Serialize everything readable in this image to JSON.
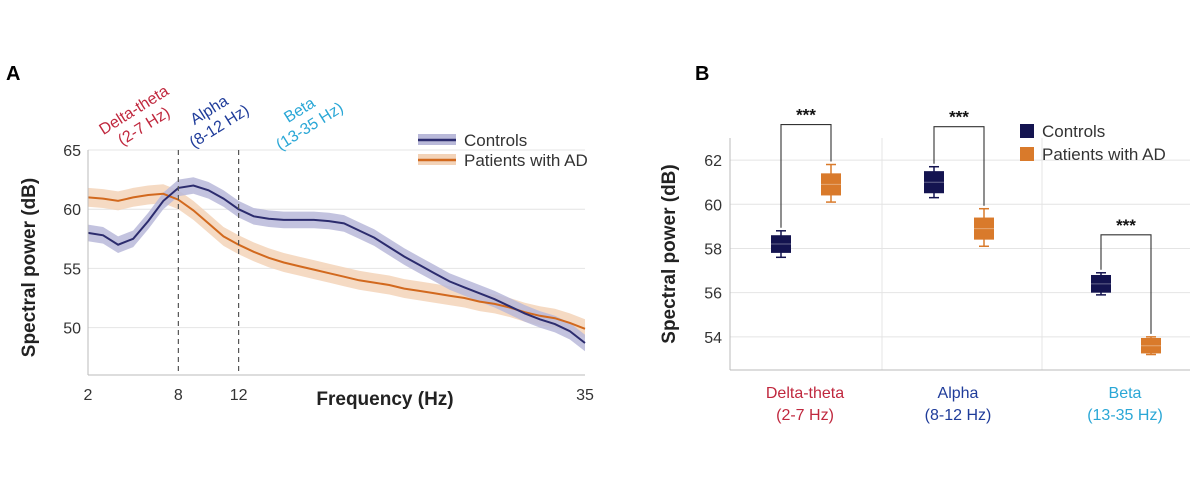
{
  "figure": {
    "panel_a_letter": "A",
    "panel_b_letter": "B"
  },
  "colors": {
    "controls": "#2c2c6e",
    "controls_band": "#b9b9d9",
    "ad": "#d2691e",
    "ad_band": "#f3d3b8",
    "delta_theta": "#c0283e",
    "alpha": "#1f3c9a",
    "beta": "#2aa7d6",
    "controls_square": "#141450",
    "ad_square": "#d97a2b"
  },
  "chart_data": [
    {
      "type": "line",
      "title": "",
      "xlabel": "Frequency (Hz)",
      "ylabel": "Spectral power (dB)",
      "xlim": [
        2,
        35
      ],
      "ylim": [
        46,
        65
      ],
      "xticks": [
        2,
        8,
        12,
        35
      ],
      "yticks": [
        50,
        55,
        60,
        65
      ],
      "xtick_labels": [
        "2",
        "8",
        "12",
        "35"
      ],
      "ytick_labels": [
        "50",
        "55",
        "60",
        "65"
      ],
      "vlines": [
        8,
        12
      ],
      "bands": [
        {
          "line1": "Delta-theta",
          "line2": "(2-7 Hz)",
          "color_key": "delta_theta",
          "center": 5
        },
        {
          "line1": "Alpha",
          "line2": "(8-12 Hz)",
          "color_key": "alpha",
          "center": 10
        },
        {
          "line1": "Beta",
          "line2": "(13-35 Hz)",
          "color_key": "beta",
          "center": 16
        }
      ],
      "legend": [
        "Controls",
        "Patients with AD"
      ],
      "series": [
        {
          "name": "Controls",
          "ci": 0.7,
          "x": [
            2,
            3,
            4,
            5,
            6,
            7,
            8,
            9,
            10,
            11,
            12,
            13,
            14,
            15,
            16,
            17,
            18,
            19,
            20,
            21,
            22,
            23,
            24,
            25,
            26,
            27,
            28,
            29,
            30,
            31,
            32,
            33,
            34,
            35
          ],
          "y": [
            58.0,
            57.8,
            57.0,
            57.5,
            59.0,
            60.7,
            61.8,
            62.0,
            61.6,
            60.9,
            60.0,
            59.4,
            59.2,
            59.1,
            59.1,
            59.1,
            59.0,
            58.8,
            58.2,
            57.6,
            56.8,
            56.0,
            55.3,
            54.6,
            53.9,
            53.4,
            52.9,
            52.4,
            51.8,
            51.2,
            50.7,
            50.3,
            49.7,
            48.7
          ]
        },
        {
          "name": "Patients with AD",
          "ci": 0.8,
          "x": [
            2,
            3,
            4,
            5,
            6,
            7,
            8,
            9,
            10,
            11,
            12,
            13,
            14,
            15,
            16,
            17,
            18,
            19,
            20,
            21,
            22,
            23,
            24,
            25,
            26,
            27,
            28,
            29,
            30,
            31,
            32,
            33,
            34,
            35
          ],
          "y": [
            61.0,
            60.9,
            60.7,
            61.0,
            61.2,
            61.3,
            60.8,
            59.9,
            58.8,
            57.7,
            57.0,
            56.4,
            55.9,
            55.5,
            55.2,
            54.9,
            54.6,
            54.3,
            54.0,
            53.8,
            53.6,
            53.3,
            53.1,
            52.9,
            52.7,
            52.5,
            52.2,
            52.0,
            51.7,
            51.3,
            51.0,
            50.8,
            50.4,
            49.9
          ]
        }
      ]
    },
    {
      "type": "box",
      "title": "",
      "xlabel": "",
      "ylabel": "Spectral power (dB)",
      "ylim": [
        52.5,
        63
      ],
      "yticks": [
        54,
        56,
        58,
        60,
        62
      ],
      "ytick_labels": [
        "54",
        "56",
        "58",
        "60",
        "62"
      ],
      "categories": [
        {
          "line1": "Delta-theta",
          "line2": "(2-7 Hz)",
          "color_key": "delta_theta"
        },
        {
          "line1": "Alpha",
          "line2": "(8-12 Hz)",
          "color_key": "alpha"
        },
        {
          "line1": "Beta",
          "line2": "(13-35 Hz)",
          "color_key": "beta"
        }
      ],
      "legend": [
        "Controls",
        "Patients with AD"
      ],
      "series": [
        {
          "name": "Controls",
          "median": [
            58.2,
            61.0,
            56.4
          ],
          "q1": [
            57.8,
            60.5,
            56.0
          ],
          "q3": [
            58.6,
            61.5,
            56.8
          ],
          "min": [
            57.6,
            60.3,
            55.9
          ],
          "max": [
            58.8,
            61.7,
            56.9
          ]
        },
        {
          "name": "Patients with AD",
          "median": [
            60.9,
            58.9,
            53.6
          ],
          "q1": [
            60.4,
            58.4,
            53.25
          ],
          "q3": [
            61.4,
            59.4,
            53.95
          ],
          "min": [
            60.1,
            58.1,
            53.2
          ],
          "max": [
            61.8,
            59.8,
            54.0
          ]
        }
      ],
      "significance": [
        "***",
        "***",
        "***"
      ]
    }
  ]
}
